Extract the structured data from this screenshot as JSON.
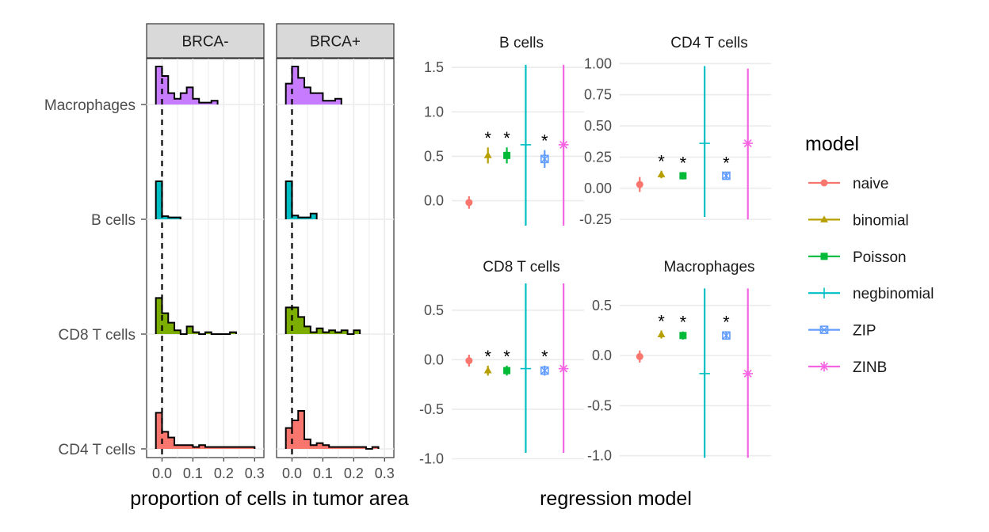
{
  "chart_data": [
    {
      "type": "histogram",
      "facets": [
        "BRCA-",
        "BRCA+"
      ],
      "rows": [
        "Macrophages",
        "B cells",
        "CD8 T cells",
        "CD4 T cells"
      ],
      "xlabel": "proportion of cells in tumor area",
      "x_ticks": [
        "0.0",
        "0.1",
        "0.2",
        "0.3"
      ],
      "xlim": [
        -0.05,
        0.33
      ],
      "bin_width": 0.02,
      "reference_line_x": 0.0,
      "colors": {
        "Macrophages": "#C77CFF",
        "B cells": "#00BFC4",
        "CD8 T cells": "#7CAE00",
        "CD4 T cells": "#F8766D"
      },
      "histograms": {
        "BRCA-": {
          "Macrophages": [
            [
              -0.01,
              1.0
            ],
            [
              0.01,
              0.75
            ],
            [
              0.03,
              0.3
            ],
            [
              0.05,
              0.15
            ],
            [
              0.07,
              0.3
            ],
            [
              0.09,
              0.45
            ],
            [
              0.11,
              0.15
            ],
            [
              0.13,
              0.05
            ],
            [
              0.15,
              0.05
            ],
            [
              0.17,
              0.1
            ]
          ],
          "B cells": [
            [
              -0.01,
              1.0
            ],
            [
              0.01,
              0.08
            ],
            [
              0.03,
              0.05
            ],
            [
              0.05,
              0.05
            ]
          ],
          "CD8 T cells": [
            [
              -0.01,
              0.95
            ],
            [
              0.01,
              0.55
            ],
            [
              0.03,
              0.3
            ],
            [
              0.05,
              0.1
            ],
            [
              0.07,
              0.0
            ],
            [
              0.09,
              0.2
            ],
            [
              0.11,
              0.05
            ],
            [
              0.13,
              0.0
            ],
            [
              0.15,
              0.05
            ],
            [
              0.17,
              0.0
            ],
            [
              0.19,
              0.0
            ],
            [
              0.21,
              0.0
            ],
            [
              0.23,
              0.05
            ]
          ],
          "CD4 T cells": [
            [
              -0.01,
              0.95
            ],
            [
              0.01,
              0.45
            ],
            [
              0.03,
              0.3
            ],
            [
              0.05,
              0.1
            ],
            [
              0.07,
              0.1
            ],
            [
              0.09,
              0.1
            ],
            [
              0.11,
              0.05
            ],
            [
              0.13,
              0.1
            ],
            [
              0.15,
              0.05
            ],
            [
              0.29,
              0.05
            ]
          ]
        },
        "BRCA+": {
          "Macrophages": [
            [
              -0.01,
              0.55
            ],
            [
              0.01,
              1.0
            ],
            [
              0.03,
              0.7
            ],
            [
              0.05,
              0.45
            ],
            [
              0.07,
              0.3
            ],
            [
              0.09,
              0.3
            ],
            [
              0.11,
              0.1
            ],
            [
              0.13,
              0.1
            ],
            [
              0.15,
              0.15
            ]
          ],
          "B cells": [
            [
              -0.01,
              1.0
            ],
            [
              0.01,
              0.1
            ],
            [
              0.03,
              0.05
            ],
            [
              0.05,
              0.05
            ],
            [
              0.07,
              0.15
            ]
          ],
          "CD8 T cells": [
            [
              -0.01,
              0.7
            ],
            [
              0.01,
              0.7
            ],
            [
              0.03,
              0.45
            ],
            [
              0.05,
              0.2
            ],
            [
              0.07,
              0.05
            ],
            [
              0.09,
              0.15
            ],
            [
              0.11,
              0.05
            ],
            [
              0.13,
              0.1
            ],
            [
              0.15,
              0.05
            ],
            [
              0.17,
              0.1
            ],
            [
              0.19,
              0.0
            ],
            [
              0.21,
              0.1
            ]
          ],
          "CD4 T cells": [
            [
              -0.01,
              0.55
            ],
            [
              0.01,
              0.75
            ],
            [
              0.03,
              1.0
            ],
            [
              0.05,
              0.25
            ],
            [
              0.07,
              0.1
            ],
            [
              0.09,
              0.15
            ],
            [
              0.11,
              0.1
            ],
            [
              0.13,
              0.05
            ],
            [
              0.15,
              0.05
            ],
            [
              0.17,
              0.05
            ],
            [
              0.19,
              0.05
            ],
            [
              0.23,
              0.05
            ],
            [
              0.25,
              0.0
            ],
            [
              0.27,
              0.05
            ]
          ]
        }
      }
    },
    {
      "type": "pointrange",
      "xlabel": "regression model",
      "series_order": [
        "naive",
        "binomial",
        "Poisson",
        "negbinomial",
        "ZIP",
        "ZINB"
      ],
      "panels": [
        {
          "title": "B cells",
          "ylim": [
            -0.28,
            1.6
          ],
          "y_ticks": [
            -0.0,
            0.5,
            1.0,
            1.5
          ],
          "y_tick_labels": [
            "0.0",
            "0.5",
            "1.0",
            "1.5"
          ],
          "points": [
            {
              "series": "naive",
              "y": -0.02,
              "lo": -0.09,
              "hi": 0.05,
              "sig": false
            },
            {
              "series": "binomial",
              "y": 0.51,
              "lo": 0.42,
              "hi": 0.6,
              "sig": true
            },
            {
              "series": "Poisson",
              "y": 0.51,
              "lo": 0.42,
              "hi": 0.6,
              "sig": true
            },
            {
              "series": "negbinomial",
              "y": 0.63,
              "lo": -0.28,
              "hi": 1.53,
              "sig": false
            },
            {
              "series": "ZIP",
              "y": 0.47,
              "lo": 0.37,
              "hi": 0.57,
              "sig": true
            },
            {
              "series": "ZINB",
              "y": 0.63,
              "lo": -0.28,
              "hi": 1.53,
              "sig": false
            }
          ]
        },
        {
          "title": "CD4 T cells",
          "ylim": [
            -0.3,
            1.04
          ],
          "y_ticks": [
            -0.25,
            0.0,
            0.25,
            0.5,
            0.75,
            1.0
          ],
          "y_tick_labels": [
            "-0.25",
            "0.00",
            "0.25",
            "0.50",
            "0.75",
            "1.00"
          ],
          "points": [
            {
              "series": "naive",
              "y": 0.03,
              "lo": -0.03,
              "hi": 0.09,
              "sig": false
            },
            {
              "series": "binomial",
              "y": 0.11,
              "lo": 0.08,
              "hi": 0.14,
              "sig": true
            },
            {
              "series": "Poisson",
              "y": 0.1,
              "lo": 0.07,
              "hi": 0.13,
              "sig": true
            },
            {
              "series": "negbinomial",
              "y": 0.36,
              "lo": -0.23,
              "hi": 0.98,
              "sig": false
            },
            {
              "series": "ZIP",
              "y": 0.1,
              "lo": 0.07,
              "hi": 0.13,
              "sig": true
            },
            {
              "series": "ZINB",
              "y": 0.36,
              "lo": -0.25,
              "hi": 0.96,
              "sig": false
            }
          ]
        },
        {
          "title": "CD8 T cells",
          "ylim": [
            -1.02,
            0.77
          ],
          "y_ticks": [
            -1.0,
            -0.5,
            0.0,
            0.5
          ],
          "y_tick_labels": [
            "-1.0",
            "-0.5",
            "0.0",
            "0.5"
          ],
          "points": [
            {
              "series": "naive",
              "y": -0.01,
              "lo": -0.07,
              "hi": 0.05,
              "sig": false
            },
            {
              "series": "binomial",
              "y": -0.11,
              "lo": -0.16,
              "hi": -0.06,
              "sig": true
            },
            {
              "series": "Poisson",
              "y": -0.11,
              "lo": -0.16,
              "hi": -0.06,
              "sig": true
            },
            {
              "series": "negbinomial",
              "y": -0.09,
              "lo": -0.94,
              "hi": 0.77,
              "sig": false
            },
            {
              "series": "ZIP",
              "y": -0.11,
              "lo": -0.16,
              "hi": -0.06,
              "sig": true
            },
            {
              "series": "ZINB",
              "y": -0.09,
              "lo": -0.94,
              "hi": 0.77,
              "sig": false
            }
          ]
        },
        {
          "title": "Macrophages",
          "ylim": [
            -1.05,
            0.72
          ],
          "y_ticks": [
            -1.0,
            -0.5,
            0.0,
            0.5
          ],
          "y_tick_labels": [
            "-1.0",
            "-0.5",
            "0.0",
            "0.5"
          ],
          "points": [
            {
              "series": "naive",
              "y": -0.01,
              "lo": -0.07,
              "hi": 0.05,
              "sig": false
            },
            {
              "series": "binomial",
              "y": 0.21,
              "lo": 0.17,
              "hi": 0.25,
              "sig": true
            },
            {
              "series": "Poisson",
              "y": 0.2,
              "lo": 0.16,
              "hi": 0.24,
              "sig": true
            },
            {
              "series": "negbinomial",
              "y": -0.18,
              "lo": -1.02,
              "hi": 0.67,
              "sig": false
            },
            {
              "series": "ZIP",
              "y": 0.2,
              "lo": 0.16,
              "hi": 0.24,
              "sig": true
            },
            {
              "series": "ZINB",
              "y": -0.18,
              "lo": -1.02,
              "hi": 0.67,
              "sig": false
            }
          ]
        }
      ],
      "legend": {
        "title": "model",
        "position": "right",
        "entries": [
          {
            "label": "naive",
            "color": "#F8766D",
            "shape": "circle"
          },
          {
            "label": "binomial",
            "color": "#B79F00",
            "shape": "triangle"
          },
          {
            "label": "Poisson",
            "color": "#00BA38",
            "shape": "square"
          },
          {
            "label": "negbinomial",
            "color": "#00BFC4",
            "shape": "plus"
          },
          {
            "label": "ZIP",
            "color": "#619CFF",
            "shape": "square-cross"
          },
          {
            "label": "ZINB",
            "color": "#F564E3",
            "shape": "asterisk"
          }
        ]
      }
    }
  ]
}
